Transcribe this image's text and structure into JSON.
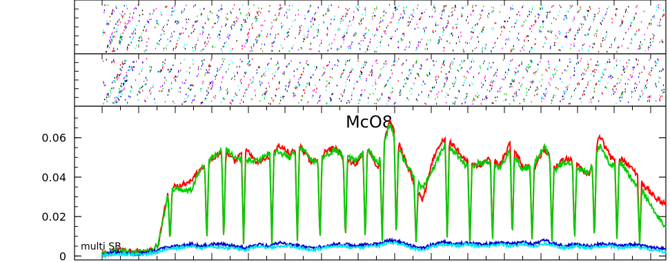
{
  "chart_data": [
    {
      "panel": "top-1",
      "type": "scatter",
      "description_pattern": "dense diagonal multicolored dot stripes",
      "colors": [
        "#ff0000",
        "#00cc00",
        "#0000ff",
        "#00ffff",
        "#ff00ff",
        "#000000"
      ]
    },
    {
      "panel": "top-2",
      "type": "scatter",
      "description_pattern": "dense diagonal multicolored dot stripes",
      "colors": [
        "#ff0000",
        "#00cc00",
        "#0000ff",
        "#00ffff",
        "#ff00ff",
        "#000000"
      ]
    },
    {
      "panel": "main",
      "type": "line",
      "title": "McO8",
      "annotation": "multi SB",
      "ylim": [
        -0.002,
        0.076
      ],
      "yticks": [
        0,
        0.02,
        0.04,
        0.06
      ],
      "ytick_labels": [
        "0",
        "0.02",
        "0.04",
        "0.06"
      ],
      "xlim": [
        0,
        100
      ],
      "grid": false,
      "x": [
        0,
        2,
        4,
        6,
        8,
        9,
        10,
        12,
        14,
        16,
        18,
        20,
        22,
        24,
        26,
        28,
        30,
        32,
        34,
        36,
        38,
        40,
        42,
        44,
        46,
        48,
        50,
        52,
        54,
        56,
        58,
        60,
        62,
        64,
        66,
        68,
        70,
        72,
        74,
        76,
        78,
        80,
        82,
        84,
        86,
        88,
        90,
        92,
        94,
        96,
        98,
        100
      ],
      "series": [
        {
          "color": "#ff0000",
          "values": [
            0.001,
            0.002,
            0.003,
            0.0025,
            0.002,
            0.003,
            0.034,
            0.036,
            0.038,
            0.045,
            0.05,
            0.053,
            0.048,
            0.054,
            0.047,
            0.05,
            0.056,
            0.052,
            0.055,
            0.047,
            0.052,
            0.055,
            0.049,
            0.047,
            0.055,
            0.044,
            0.069,
            0.055,
            0.04,
            0.028,
            0.05,
            0.06,
            0.055,
            0.048,
            0.045,
            0.05,
            0.046,
            0.058,
            0.046,
            0.044,
            0.055,
            0.045,
            0.05,
            0.046,
            0.04,
            0.061,
            0.05,
            0.049,
            0.044,
            0.036,
            0.03,
            0.026
          ]
        },
        {
          "color": "#00cc00",
          "values": [
            0.001,
            0.002,
            0.0025,
            0.002,
            0.002,
            0.003,
            0.033,
            0.034,
            0.033,
            0.045,
            0.05,
            0.055,
            0.05,
            0.049,
            0.048,
            0.052,
            0.053,
            0.05,
            0.056,
            0.048,
            0.05,
            0.054,
            0.05,
            0.049,
            0.054,
            0.047,
            0.067,
            0.052,
            0.042,
            0.034,
            0.045,
            0.057,
            0.052,
            0.045,
            0.047,
            0.048,
            0.045,
            0.054,
            0.044,
            0.046,
            0.056,
            0.044,
            0.048,
            0.045,
            0.042,
            0.056,
            0.046,
            0.047,
            0.038,
            0.032,
            0.022,
            0.015
          ]
        },
        {
          "color": "#0000cc",
          "values": [
            0.0,
            0.002,
            0.0015,
            0.001,
            0.0015,
            0.003,
            0.005,
            0.005,
            0.006,
            0.005,
            0.006,
            0.006,
            0.005,
            0.004,
            0.006,
            0.005,
            0.007,
            0.006,
            0.005,
            0.004,
            0.005,
            0.006,
            0.006,
            0.005,
            0.006,
            0.006,
            0.008,
            0.007,
            0.005,
            0.004,
            0.006,
            0.007,
            0.006,
            0.007,
            0.006,
            0.006,
            0.007,
            0.006,
            0.007,
            0.006,
            0.008,
            0.006,
            0.005,
            0.006,
            0.005,
            0.006,
            0.006,
            0.005,
            0.006,
            0.005,
            0.004,
            0.004
          ]
        },
        {
          "color": "#00e5ee",
          "values": [
            0.0,
            0.001,
            0.001,
            0.0005,
            0.001,
            0.002,
            0.004,
            0.004,
            0.005,
            0.004,
            0.005,
            0.004,
            0.004,
            0.003,
            0.005,
            0.004,
            0.005,
            0.005,
            0.004,
            0.003,
            0.004,
            0.005,
            0.005,
            0.004,
            0.005,
            0.005,
            0.007,
            0.006,
            0.004,
            0.003,
            0.005,
            0.006,
            0.005,
            0.006,
            0.005,
            0.005,
            0.006,
            0.005,
            0.006,
            0.005,
            0.006,
            0.005,
            0.004,
            0.005,
            0.004,
            0.005,
            0.005,
            0.004,
            0.005,
            0.004,
            0.003,
            0.002
          ]
        }
      ],
      "dips_x": [
        9,
        19,
        24,
        37,
        43,
        50,
        60,
        69,
        77,
        86,
        93,
        99,
        104,
        111,
        122,
        130,
        138,
        145,
        152,
        159,
        167,
        174,
        182,
        190
      ]
    }
  ]
}
